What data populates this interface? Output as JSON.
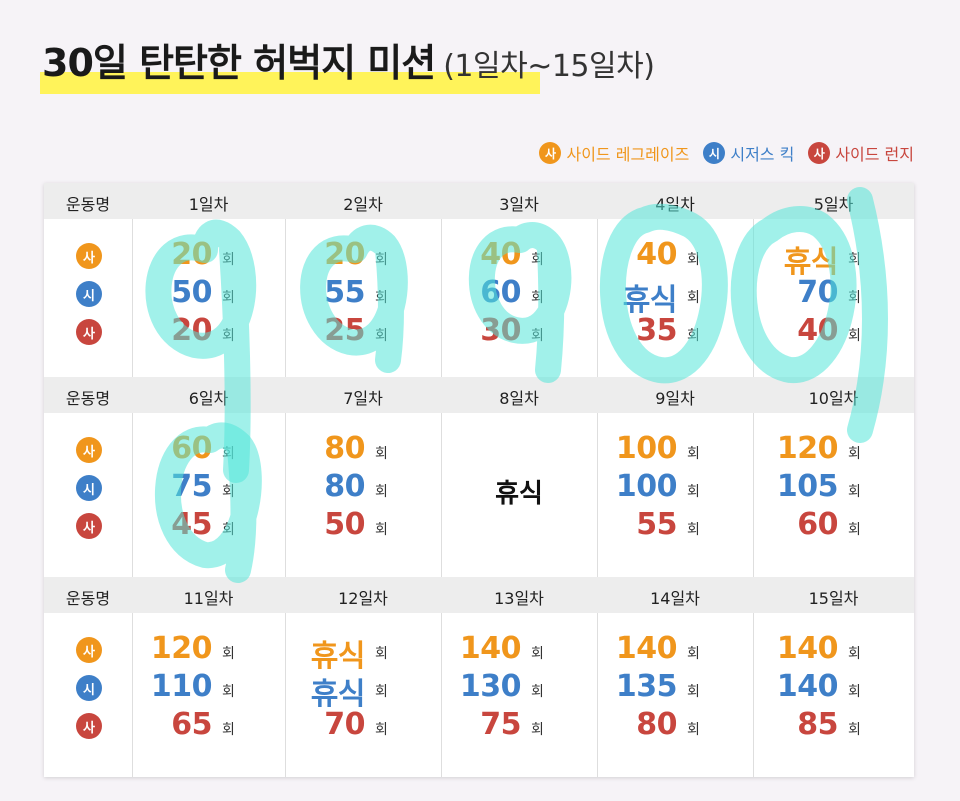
{
  "title": {
    "main": "30일 탄탄한 허벅지 미션",
    "sub": "(1일차~15일차)"
  },
  "legend": [
    {
      "badge": "사",
      "label": "사이드 레그레이즈",
      "color": "#f0961c"
    },
    {
      "badge": "시",
      "label": "시저스 킥",
      "color": "#3e7fc8"
    },
    {
      "badge": "사",
      "label": "사이드 런지",
      "color": "#c8463e"
    }
  ],
  "table": {
    "row_header": "운동명",
    "unit": "회",
    "rows": [
      {
        "days": [
          "1일차",
          "2일차",
          "3일차",
          "4일차",
          "5일차"
        ],
        "values": [
          [
            "20",
            "50",
            "20"
          ],
          [
            "20",
            "55",
            "25"
          ],
          [
            "40",
            "60",
            "30"
          ],
          [
            "40",
            "휴식",
            "35"
          ],
          [
            "휴식",
            "70",
            "40"
          ]
        ]
      },
      {
        "days": [
          "6일차",
          "7일차",
          "8일차",
          "9일차",
          "10일차"
        ],
        "values": [
          [
            "60",
            "75",
            "45"
          ],
          [
            "80",
            "80",
            "50"
          ],
          [
            "휴식"
          ],
          [
            "100",
            "100",
            "55"
          ],
          [
            "120",
            "105",
            "60"
          ]
        ]
      },
      {
        "days": [
          "11일차",
          "12일차",
          "13일차",
          "14일차",
          "15일차"
        ],
        "values": [
          [
            "120",
            "110",
            "65"
          ],
          [
            "휴식",
            "휴식",
            "70"
          ],
          [
            "140",
            "130",
            "75"
          ],
          [
            "140",
            "135",
            "80"
          ],
          [
            "140",
            "140",
            "85"
          ]
        ]
      }
    ]
  },
  "exercise_badges": [
    "사",
    "시",
    "사"
  ],
  "handwritten_overlay": "9 9 9 0 0 9 9"
}
